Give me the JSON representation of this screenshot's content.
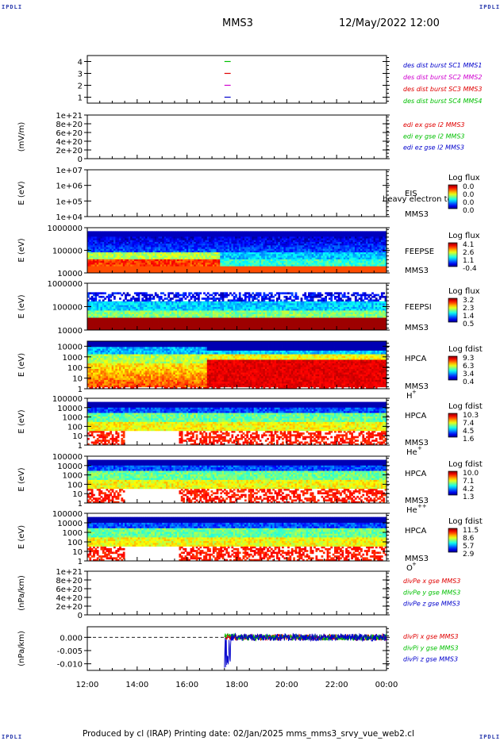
{
  "corner_label": "IPDLI",
  "title": "MMS3",
  "date_title": "12/May/2022 12:00",
  "footer": "Produced by cl (IRAP)   Printing date: 02/Jan/2025   mms_mms3_srvy_vue_web2.cl",
  "colors": {
    "black": "#000000",
    "green": "#00c000",
    "red": "#e00000",
    "blue": "#0000cc",
    "magenta": "#d000d0",
    "zero_line": "#000000"
  },
  "chart_data": [
    {
      "type": "line",
      "name": "burst",
      "ylim": [
        0.5,
        4.5
      ],
      "yticks": [
        "1",
        "2",
        "3",
        "4"
      ],
      "legend": [
        {
          "text": "des dist burst SC1 MMS1",
          "color": "#0000cc"
        },
        {
          "text": "des dist burst SC2 MMS2",
          "color": "#d000d0"
        },
        {
          "text": "des dist burst SC3 MMS3",
          "color": "#e00000"
        },
        {
          "text": "des dist burst SC4 MMS4",
          "color": "#00c000"
        }
      ],
      "segments": [
        {
          "y": 4,
          "x": [
            17.5,
            17.75
          ],
          "color": "#00c000"
        },
        {
          "y": 3,
          "x": [
            17.5,
            17.75
          ],
          "color": "#e00000"
        },
        {
          "y": 2,
          "x": [
            17.5,
            17.75
          ],
          "color": "#d000d0"
        },
        {
          "y": 1,
          "x": [
            17.5,
            17.75
          ],
          "color": "#0000cc"
        }
      ]
    },
    {
      "type": "line",
      "name": "edi",
      "ylabel": "(mV/m)",
      "ylim": [
        0,
        1e+21
      ],
      "yticks": [
        "0",
        "2e+20",
        "4e+20",
        "6e+20",
        "8e+20",
        "1e+21"
      ],
      "legend": [
        {
          "text": "edi ex gse l2 MMS3",
          "color": "#e00000"
        },
        {
          "text": "edi ey gse l2 MMS3",
          "color": "#00c000"
        },
        {
          "text": "edi ez gse l2 MMS3",
          "color": "#0000cc"
        }
      ]
    },
    {
      "type": "heatmap",
      "name": "eis",
      "ylabel": "E (eV)",
      "yscale": "log",
      "ylim": [
        10000.0,
        10000000.0
      ],
      "yticks": [
        "1e+04",
        "1e+05",
        "1e+06",
        "1e+07"
      ],
      "labels": [
        "EIS",
        "MMS3"
      ],
      "overlay_text": "heavy electron to",
      "colorbar": {
        "title": "Log flux",
        "ticks": [
          "0.0",
          "0.0",
          "0.0",
          "0.0"
        ]
      }
    },
    {
      "type": "heatmap",
      "name": "feeps_e",
      "ylabel": "E (eV)",
      "yscale": "log",
      "ylim": [
        10000.0,
        1000000.0
      ],
      "yticks": [
        "10000",
        "100000",
        "1000000"
      ],
      "labels": [
        "FEEPSE",
        "MMS3"
      ],
      "colorbar": {
        "title": "Log flux",
        "ticks": [
          "4.1",
          "2.6",
          "1.1",
          "-0.4"
        ]
      }
    },
    {
      "type": "heatmap",
      "name": "feeps_i",
      "ylabel": "E (eV)",
      "yscale": "log",
      "ylim": [
        10000.0,
        1000000.0
      ],
      "yticks": [
        "10000",
        "100000",
        "1000000"
      ],
      "labels": [
        "FEEPSI",
        "MMS3"
      ],
      "colorbar": {
        "title": "Log flux",
        "ticks": [
          "3.2",
          "2.3",
          "1.4",
          "0.5"
        ]
      }
    },
    {
      "type": "heatmap",
      "name": "hpca_h",
      "ylabel": "E (eV)",
      "yscale": "log",
      "ylim": [
        1,
        30000.0
      ],
      "yticks": [
        "1",
        "10",
        "100",
        "1000",
        "10000"
      ],
      "labels": [
        "HPCA",
        "MMS3"
      ],
      "species": "H",
      "species_sup": "+",
      "colorbar": {
        "title": "Log fdist",
        "ticks": [
          "9.3",
          "6.3",
          "3.4",
          "0.4"
        ]
      }
    },
    {
      "type": "heatmap",
      "name": "hpca_he",
      "ylabel": "E (eV)",
      "yscale": "log",
      "ylim": [
        1,
        100000.0
      ],
      "yticks": [
        "1",
        "10",
        "100",
        "1000",
        "10000",
        "100000"
      ],
      "labels": [
        "HPCA",
        "MMS3"
      ],
      "species": "He",
      "species_sup": "+",
      "colorbar": {
        "title": "Log fdist",
        "ticks": [
          "10.3",
          "7.4",
          "4.5",
          "1.6"
        ]
      }
    },
    {
      "type": "heatmap",
      "name": "hpca_hepp",
      "ylabel": "E (eV)",
      "yscale": "log",
      "ylim": [
        1,
        100000.0
      ],
      "yticks": [
        "1",
        "10",
        "100",
        "1000",
        "10000",
        "100000"
      ],
      "labels": [
        "HPCA",
        "MMS3"
      ],
      "species": "He",
      "species_sup": "++",
      "colorbar": {
        "title": "Log fdist",
        "ticks": [
          "10.0",
          "7.1",
          "4.2",
          "1.3"
        ]
      }
    },
    {
      "type": "heatmap",
      "name": "hpca_o",
      "ylabel": "E (eV)",
      "yscale": "log",
      "ylim": [
        1,
        100000.0
      ],
      "yticks": [
        "1",
        "10",
        "100",
        "1000",
        "10000",
        "100000"
      ],
      "labels": [
        "HPCA",
        "MMS3"
      ],
      "species": "O",
      "species_sup": "+",
      "colorbar": {
        "title": "Log fdist",
        "ticks": [
          "11.5",
          "8.6",
          "5.7",
          "2.9"
        ]
      }
    },
    {
      "type": "line",
      "name": "divpe",
      "ylabel": "(nPa/km)",
      "ylim": [
        0,
        1e+21
      ],
      "yticks": [
        "0",
        "2e+20",
        "4e+20",
        "6e+20",
        "8e+20",
        "1e+21"
      ],
      "legend": [
        {
          "text": "divPe x gse MMS3",
          "color": "#e00000"
        },
        {
          "text": "divPe y gse MMS3",
          "color": "#00c000"
        },
        {
          "text": "divPe z gse MMS3",
          "color": "#0000cc"
        }
      ]
    },
    {
      "type": "line",
      "name": "divpi",
      "ylabel": "(nPa/km)",
      "ylim": [
        -0.0125,
        0.004
      ],
      "yticks": [
        "-0.010",
        "-0.005",
        "0.000"
      ],
      "legend": [
        {
          "text": "divPi x gse MMS3",
          "color": "#e00000"
        },
        {
          "text": "divPi y gse MMS3",
          "color": "#00c000"
        },
        {
          "text": "divPi z gse MMS3",
          "color": "#0000cc"
        }
      ],
      "x_start": 17.5,
      "series": [
        {
          "name": "divPi x gse MMS3",
          "color": "#e00000",
          "amplitude": 0.0012
        },
        {
          "name": "divPi y gse MMS3",
          "color": "#00c000",
          "amplitude": 0.0012
        },
        {
          "name": "divPi z gse MMS3",
          "color": "#0000cc",
          "amplitude": 0.0014,
          "min": -0.0115
        }
      ]
    }
  ],
  "x_axis": {
    "ticks": [
      "12:00",
      "14:00",
      "16:00",
      "18:00",
      "20:00",
      "22:00",
      "00:00"
    ],
    "xlim": [
      12,
      24
    ]
  }
}
